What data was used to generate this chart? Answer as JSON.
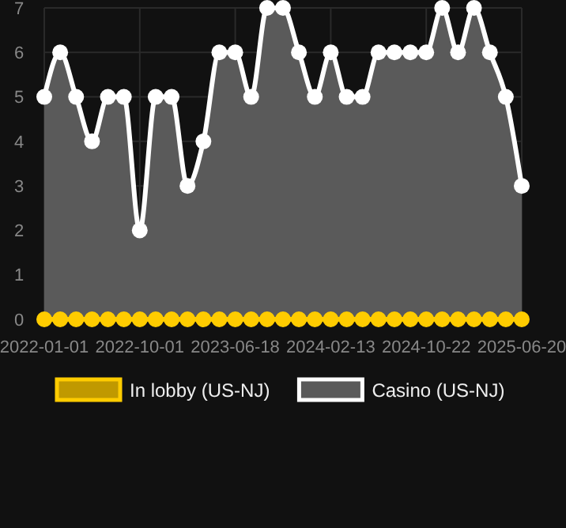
{
  "chart_data": {
    "type": "area",
    "categories": [
      "2022-01-01",
      null,
      null,
      null,
      null,
      null,
      "2022-10-01",
      null,
      null,
      null,
      null,
      null,
      "2023-06-18",
      null,
      null,
      null,
      null,
      null,
      "2024-02-13",
      null,
      null,
      null,
      null,
      null,
      "2024-10-22",
      null,
      null,
      null,
      null,
      null,
      "2025-06-20"
    ],
    "series": [
      {
        "name": "In lobby (US-NJ)",
        "type": "line",
        "color": "#ffcc00",
        "values": [
          0,
          0,
          0,
          0,
          0,
          0,
          0,
          0,
          0,
          0,
          0,
          0,
          0,
          0,
          0,
          0,
          0,
          0,
          0,
          0,
          0,
          0,
          0,
          0,
          0,
          0,
          0,
          0,
          0,
          0,
          0
        ]
      },
      {
        "name": "Casino (US-NJ)",
        "color": "#ffffff",
        "values": [
          5,
          6,
          5,
          4,
          5,
          5,
          2,
          5,
          5,
          3,
          4,
          6,
          6,
          5,
          7,
          7,
          6,
          5,
          6,
          5,
          5,
          6,
          6,
          6,
          6,
          7,
          6,
          7,
          6,
          5,
          3
        ]
      }
    ],
    "ylim": [
      0,
      7
    ],
    "yticks": [
      0,
      1,
      2,
      3,
      4,
      5,
      6,
      7
    ],
    "grid": true,
    "marker": "circle",
    "legend": "bottom"
  }
}
